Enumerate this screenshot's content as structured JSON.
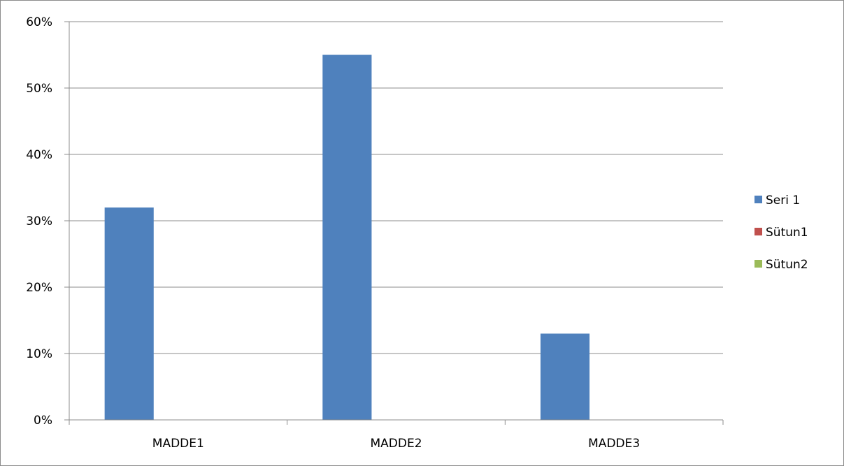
{
  "chart_data": {
    "type": "bar",
    "categories": [
      "MADDE1",
      "MADDE2",
      "MADDE3"
    ],
    "series": [
      {
        "name": "Seri 1",
        "values": [
          32,
          55,
          13
        ],
        "color": "#4f81bd"
      },
      {
        "name": "Sütun1",
        "values": [
          0,
          0,
          0
        ],
        "color": "#c0504d"
      },
      {
        "name": "Sütun2",
        "values": [
          0,
          0,
          0
        ],
        "color": "#9bbb59"
      }
    ],
    "ylim": [
      0,
      60
    ],
    "yticks": [
      0,
      10,
      20,
      30,
      40,
      50,
      60
    ],
    "ytick_labels": [
      "0%",
      "10%",
      "20%",
      "30%",
      "40%",
      "50%",
      "60%"
    ],
    "unit": "%",
    "grid": true,
    "legend": "right"
  }
}
